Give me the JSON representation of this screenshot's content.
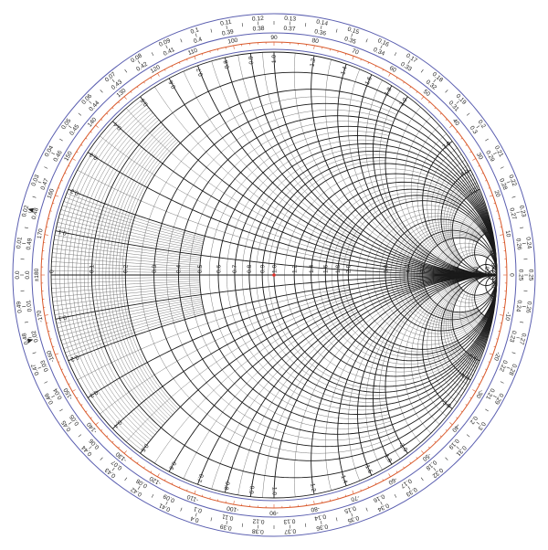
{
  "colors": {
    "ring_blue": "#5b5fb0",
    "angle_red": "#d9582a",
    "grid": "#1a1a1a",
    "center_mark": "#e0302a"
  },
  "resistance_labels": [
    "0.1",
    "0.2",
    "0.3",
    "0.4",
    "0.5",
    "0.6",
    "0.7",
    "0.8",
    "0.9",
    "1.0",
    "1.2",
    "1.4",
    "1.6",
    "1.8",
    "2.0",
    "3.0",
    "4.0",
    "5.0",
    "10",
    "20",
    "50"
  ],
  "origin_label": "0",
  "reactance_labels": [
    "0.1",
    "0.2",
    "0.3",
    "0.4",
    "0.5",
    "0.6",
    "0.7",
    "0.8",
    "0.9",
    "1.0",
    "1.2",
    "1.4",
    "1.6",
    "1.8",
    "2.0",
    "3.0",
    "4.0",
    "5.0",
    "10",
    "20",
    "50"
  ],
  "wavelengths_toward_generator": [
    "0.0",
    "0.01",
    "0.02",
    "0.03",
    "0.04",
    "0.05",
    "0.06",
    "0.07",
    "0.08",
    "0.09",
    "0.1",
    "0.11",
    "0.12",
    "0.13",
    "0.14",
    "0.15",
    "0.16",
    "0.17",
    "0.18",
    "0.19",
    "0.2",
    "0.21",
    "0.22",
    "0.23",
    "0.24",
    "0.25",
    "0.26",
    "0.27",
    "0.28",
    "0.29",
    "0.3",
    "0.31",
    "0.32",
    "0.33",
    "0.34",
    "0.35",
    "0.36",
    "0.37",
    "0.38",
    "0.39",
    "0.4",
    "0.41",
    "0.42",
    "0.43",
    "0.44",
    "0.45",
    "0.46",
    "0.47",
    "0.48",
    "0.49"
  ],
  "wavelengths_toward_load": [
    "0.0",
    "0.49",
    "0.48",
    "0.47",
    "0.46",
    "0.45",
    "0.44",
    "0.43",
    "0.42",
    "0.41",
    "0.4",
    "0.39",
    "0.38",
    "0.37",
    "0.36",
    "0.35",
    "0.34",
    "0.33",
    "0.32",
    "0.31",
    "0.3",
    "0.29",
    "0.28",
    "0.27",
    "0.26",
    "0.25",
    "0.24",
    "0.23",
    "0.22",
    "0.21",
    "0.2",
    "0.19",
    "0.18",
    "0.17",
    "0.16",
    "0.15",
    "0.14",
    "0.13",
    "0.12",
    "0.11",
    "0.1",
    "0.09",
    "0.08",
    "0.07",
    "0.06",
    "0.05",
    "0.04",
    "0.03",
    "0.02",
    "0.01"
  ],
  "reflection_angle_degrees": [
    "±180",
    "170",
    "160",
    "150",
    "140",
    "130",
    "120",
    "110",
    "100",
    "90",
    "80",
    "70",
    "60",
    "50",
    "40",
    "30",
    "20",
    "10",
    "0",
    "-10",
    "-20",
    "-30",
    "-40",
    "-50",
    "-60",
    "-70",
    "-80",
    "-90",
    "-100",
    "-110",
    "-120",
    "-130",
    "-140",
    "-150",
    "-160",
    "-170"
  ]
}
